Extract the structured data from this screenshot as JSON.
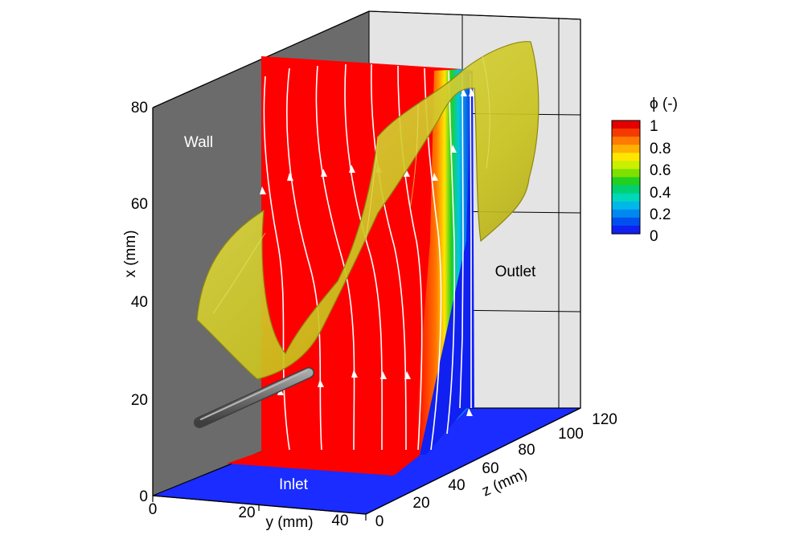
{
  "regions": {
    "wall": "Wall",
    "outlet": "Outlet",
    "inlet": "Inlet"
  },
  "axes": {
    "x": {
      "label": "x (mm)",
      "ticks": [
        "0",
        "20",
        "40",
        "60",
        "80"
      ]
    },
    "y": {
      "label": "y (mm)",
      "ticks": [
        "0",
        "20",
        "40"
      ]
    },
    "z": {
      "label": "z (mm)",
      "ticks": [
        "0",
        "20",
        "40",
        "60",
        "80",
        "100",
        "120"
      ]
    }
  },
  "colorbar": {
    "title": "ϕ (-)",
    "ticks": [
      "1",
      "0.8",
      "0.6",
      "0.4",
      "0.2",
      "0"
    ],
    "colors": [
      "#e50000",
      "#f53a00",
      "#ff7a00",
      "#ffb000",
      "#ffe600",
      "#c8f000",
      "#7ee000",
      "#22d020",
      "#00d070",
      "#00d8b8",
      "#00b8e8",
      "#0088f0",
      "#0050f0",
      "#1020f0"
    ]
  },
  "colors": {
    "wall": "#6b6b6b",
    "outlet": "#e4e4e4",
    "floor": "#1a2cff",
    "field_high": "#ff0000",
    "isosurface": "#c9c31e",
    "streamline": "#ffffff"
  }
}
